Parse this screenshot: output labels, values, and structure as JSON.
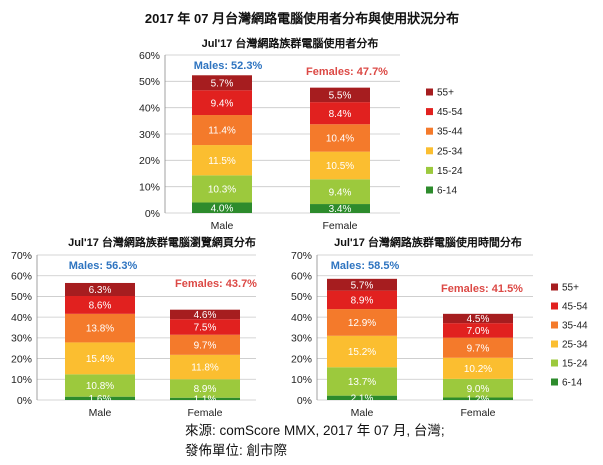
{
  "page": {
    "title": "2017 年 07 月台灣網路電腦使用者分布與使用狀況分布",
    "source": "來源: comScore MMX, 2017 年 07 月, 台灣;",
    "publisher": "發佈單位: 創市際"
  },
  "chart_data": [
    {
      "type": "bar",
      "stacked": true,
      "title": "Jul'17 台灣網路族群電腦使用者分布",
      "categories": [
        "Male",
        "Female"
      ],
      "ylim": [
        0,
        60
      ],
      "yticks": [
        0,
        10,
        20,
        30,
        40,
        50,
        60
      ],
      "ytick_labels": [
        "0%",
        "10%",
        "20%",
        "30%",
        "40%",
        "50%",
        "60%"
      ],
      "grid": true,
      "legend": "right",
      "series": [
        {
          "name": "55+",
          "color": "#a61d1f",
          "values": [
            5.7,
            5.5
          ],
          "labels": [
            "5.7%",
            "5.5%"
          ]
        },
        {
          "name": "45-54",
          "color": "#e1211f",
          "values": [
            9.4,
            8.4
          ],
          "labels": [
            "9.4%",
            "8.4%"
          ]
        },
        {
          "name": "35-44",
          "color": "#f47a2b",
          "values": [
            11.4,
            10.4
          ],
          "labels": [
            "11.4%",
            "10.4%"
          ]
        },
        {
          "name": "25-34",
          "color": "#fbbe30",
          "values": [
            11.5,
            10.5
          ],
          "labels": [
            "11.5%",
            "10.5%"
          ]
        },
        {
          "name": "15-24",
          "color": "#9cc93d",
          "values": [
            10.3,
            9.4
          ],
          "labels": [
            "10.3%",
            "9.4%"
          ]
        },
        {
          "name": "6-14",
          "color": "#2d8b2c",
          "values": [
            4.0,
            3.4
          ],
          "labels": [
            "4.0%",
            "3.4%"
          ]
        }
      ],
      "annotations": [
        {
          "text": "Males: 52.3%",
          "color": "#2e74c0"
        },
        {
          "text": "Females: 47.7%",
          "color": "#dc4945"
        }
      ]
    },
    {
      "type": "bar",
      "stacked": true,
      "title": "Jul'17 台灣網路族群電腦瀏覽網頁分布",
      "categories": [
        "Male",
        "Female"
      ],
      "ylim": [
        0,
        70
      ],
      "yticks": [
        0,
        10,
        20,
        30,
        40,
        50,
        60,
        70
      ],
      "ytick_labels": [
        "0%",
        "10%",
        "20%",
        "30%",
        "40%",
        "50%",
        "60%",
        "70%"
      ],
      "grid": true,
      "legend": "none",
      "series": [
        {
          "color": "#a61d1f",
          "values": [
            6.3,
            4.6
          ],
          "labels": [
            "6.3%",
            "4.6%"
          ]
        },
        {
          "color": "#e1211f",
          "values": [
            8.6,
            7.5
          ],
          "labels": [
            "8.6%",
            "7.5%"
          ]
        },
        {
          "color": "#f47a2b",
          "values": [
            13.8,
            9.7
          ],
          "labels": [
            "13.8%",
            "9.7%"
          ]
        },
        {
          "color": "#fbbe30",
          "values": [
            15.4,
            11.8
          ],
          "labels": [
            "15.4%",
            "11.8%"
          ]
        },
        {
          "color": "#9cc93d",
          "values": [
            10.8,
            8.9
          ],
          "labels": [
            "10.8%",
            "8.9%"
          ]
        },
        {
          "color": "#2d8b2c",
          "values": [
            1.6,
            1.1
          ],
          "labels": [
            "1.6%",
            "1.1%"
          ]
        }
      ],
      "annotations": [
        {
          "text": "Males: 56.3%",
          "color": "#2e74c0"
        },
        {
          "text": "Females: 43.7%",
          "color": "#dc4945"
        }
      ]
    },
    {
      "type": "bar",
      "stacked": true,
      "title": "Jul'17 台灣網路族群電腦使用時間分布",
      "categories": [
        "Male",
        "Female"
      ],
      "ylim": [
        0,
        70
      ],
      "yticks": [
        0,
        10,
        20,
        30,
        40,
        50,
        60,
        70
      ],
      "ytick_labels": [
        "0%",
        "10%",
        "20%",
        "30%",
        "40%",
        "50%",
        "60%",
        "70%"
      ],
      "grid": true,
      "legend": "right",
      "series": [
        {
          "name": "55+",
          "color": "#a61d1f",
          "values": [
            5.7,
            4.5
          ],
          "labels": [
            "5.7%",
            "4.5%"
          ]
        },
        {
          "name": "45-54",
          "color": "#e1211f",
          "values": [
            8.9,
            7.0
          ],
          "labels": [
            "8.9%",
            "7.0%"
          ]
        },
        {
          "name": "35-44",
          "color": "#f47a2b",
          "values": [
            12.9,
            9.7
          ],
          "labels": [
            "12.9%",
            "9.7%"
          ]
        },
        {
          "name": "25-34",
          "color": "#fbbe30",
          "values": [
            15.2,
            10.2
          ],
          "labels": [
            "15.2%",
            "10.2%"
          ]
        },
        {
          "name": "15-24",
          "color": "#9cc93d",
          "values": [
            13.7,
            9.0
          ],
          "labels": [
            "13.7%",
            "9.0%"
          ]
        },
        {
          "name": "6-14",
          "color": "#2d8b2c",
          "values": [
            2.1,
            1.2
          ],
          "labels": [
            "2.1%",
            "1.2%"
          ]
        }
      ],
      "annotations": [
        {
          "text": "Males: 58.5%",
          "color": "#2e74c0"
        },
        {
          "text": "Females: 41.5%",
          "color": "#dc4945"
        }
      ]
    }
  ]
}
